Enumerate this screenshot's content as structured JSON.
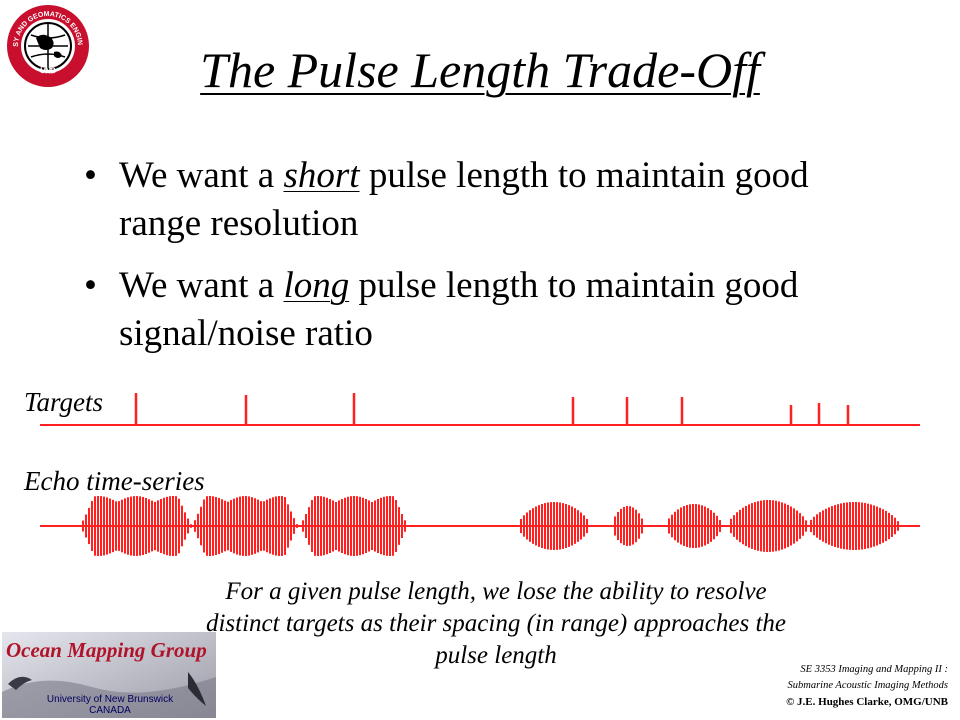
{
  "logo": {
    "ring_text_top": "GEODESY AND GEOMATICS ENGINEERING",
    "ring_text_bottom": "UNB"
  },
  "title": "The Pulse Length Trade-Off",
  "bullets": [
    {
      "pre": "We want a ",
      "emph": "short",
      "post": " pulse length to maintain good range resolution"
    },
    {
      "pre": "We want a ",
      "emph": "long",
      "post": " pulse length to maintain good signal/noise ratio"
    }
  ],
  "figure": {
    "targets_label": "Targets",
    "echo_label": "Echo time-series",
    "color": "#ff2020"
  },
  "caption": "For a given pulse length, we lose the ability to resolve distinct targets as their spacing (in range) approaches the pulse length",
  "footer": {
    "group_name": "Ocean Mapping Group",
    "university": "University of New Brunswick",
    "country": "CANADA",
    "course_line1": "SE 3353 Imaging and Mapping II :",
    "course_line2": "Submarine Acoustic Imaging Methods",
    "copyright": "© J.E. Hughes Clarke, OMG/UNB"
  }
}
